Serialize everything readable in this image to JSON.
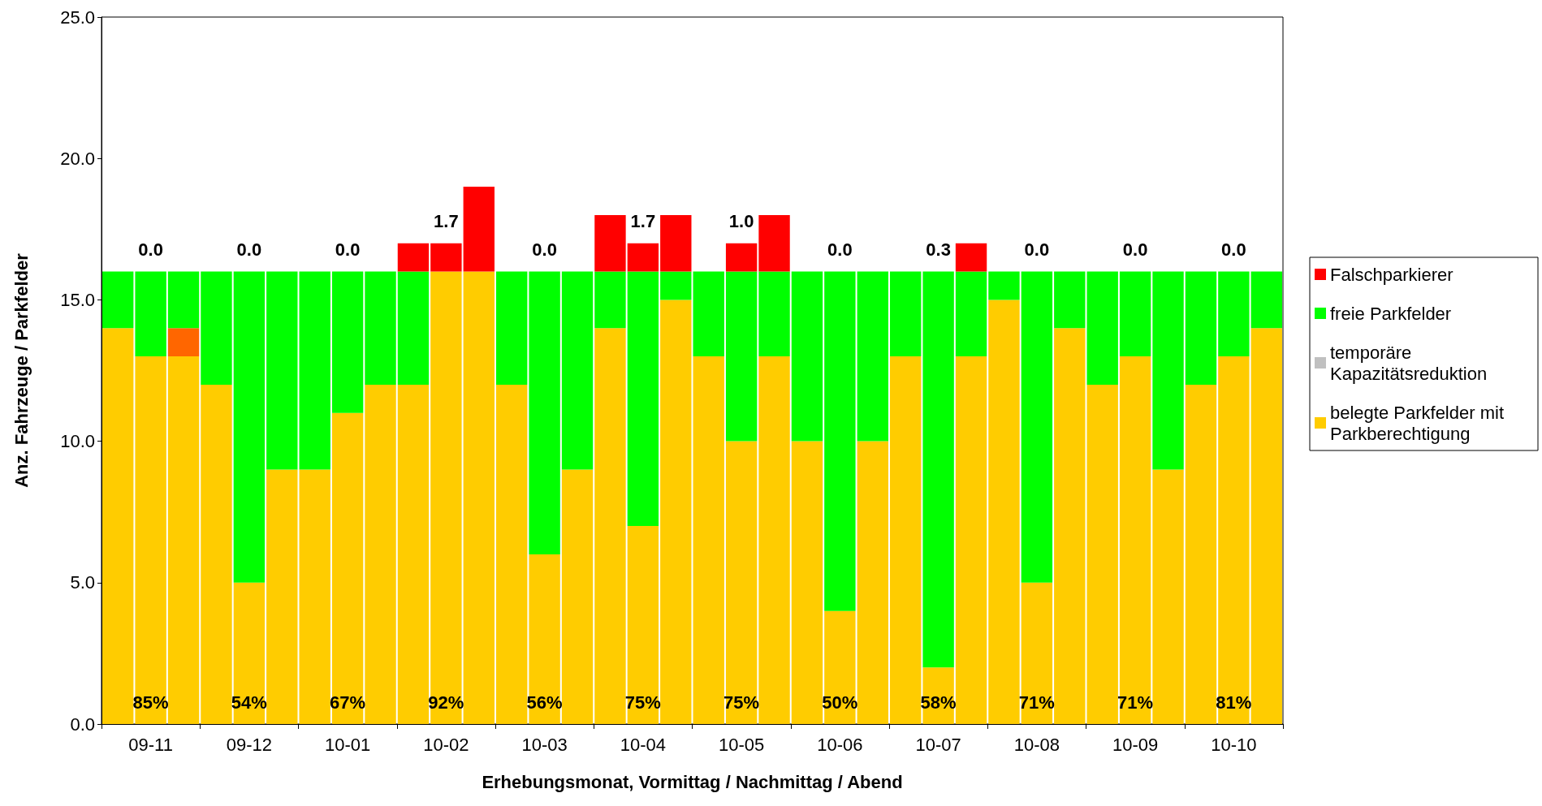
{
  "chart_data": {
    "type": "bar",
    "stacked": true,
    "xlabel": "Erhebungsmonat, Vormittag / Nachmittag / Abend",
    "ylabel": "Anz. Fahrzeuge / Parkfelder",
    "categories": [
      null,
      "09-11",
      null,
      null,
      "09-12",
      null,
      null,
      "10-01",
      null,
      null,
      "10-02",
      null,
      null,
      "10-03",
      null,
      null,
      "10-04",
      null,
      null,
      "10-05",
      null,
      null,
      "10-06",
      null,
      null,
      "10-07",
      null,
      null,
      "10-08",
      null,
      null,
      "10-09",
      null,
      null,
      "10-10",
      null
    ],
    "series": [
      {
        "name": "belegte Parkfelder mit Parkberechtigung",
        "color": "#ffcc00",
        "values": [
          14,
          13,
          13,
          12,
          5,
          9,
          9,
          11,
          12,
          12,
          16,
          16,
          12,
          6,
          9,
          14,
          7,
          15,
          13,
          10,
          13,
          10,
          4,
          10,
          13,
          2,
          13,
          15,
          5,
          14,
          12,
          13,
          9,
          12,
          13,
          14
        ]
      },
      {
        "color": "#ff6600",
        "values": [
          null,
          null,
          1,
          null,
          null,
          null,
          null,
          null,
          null,
          null,
          null,
          null,
          null,
          null,
          null,
          null,
          null,
          null,
          null,
          null,
          null,
          null,
          null,
          null,
          null,
          null,
          null,
          null,
          null,
          null,
          null,
          null,
          null,
          null,
          null,
          null
        ]
      },
      {
        "name": "temporäre Kapazitätsreduktion",
        "color": "#c0c0c0",
        "values": [
          null,
          null,
          null,
          null,
          null,
          null,
          null,
          null,
          null,
          null,
          null,
          null,
          null,
          null,
          null,
          null,
          null,
          null,
          null,
          null,
          null,
          null,
          null,
          null,
          null,
          null,
          null,
          null,
          null,
          null,
          null,
          null,
          null,
          null,
          null,
          null
        ]
      },
      {
        "name": "freie Parkfelder",
        "color": "#00ff00",
        "values": [
          2,
          3,
          2,
          4,
          11,
          7,
          7,
          5,
          4,
          4,
          null,
          null,
          4,
          10,
          7,
          2,
          9,
          1,
          3,
          6,
          3,
          6,
          12,
          6,
          3,
          14,
          3,
          1,
          11,
          2,
          4,
          3,
          7,
          4,
          3,
          2
        ]
      },
      {
        "name": "Falschparkierer",
        "color": "#ff0000",
        "values": [
          null,
          null,
          null,
          null,
          null,
          null,
          null,
          null,
          null,
          1,
          1,
          3,
          null,
          null,
          null,
          2,
          1,
          2,
          null,
          1,
          2,
          null,
          null,
          null,
          null,
          null,
          1,
          null,
          null,
          null,
          null,
          null,
          null,
          null,
          null,
          null
        ]
      }
    ],
    "ylim": [
      0,
      25
    ],
    "yticks": [
      {
        "value": 0,
        "label": "0.0"
      },
      {
        "value": 5,
        "label": "5.0"
      },
      {
        "value": 10,
        "label": "10.0"
      },
      {
        "value": 15,
        "label": "15.0"
      },
      {
        "value": 20,
        "label": "20.0"
      },
      {
        "value": 25,
        "label": "25.0"
      }
    ],
    "grid": false,
    "legend": "right",
    "annotations": [
      "0.0",
      "0.0",
      "0.0",
      "1.7",
      "0.0",
      "1.7",
      "1.0",
      "0.0",
      "0.3",
      "0.0",
      "0.0",
      "0.0",
      "85%",
      "54%",
      "67%",
      "92%",
      "56%",
      "75%",
      "75%",
      "50%",
      "58%",
      "71%",
      "71%",
      "81%"
    ]
  }
}
